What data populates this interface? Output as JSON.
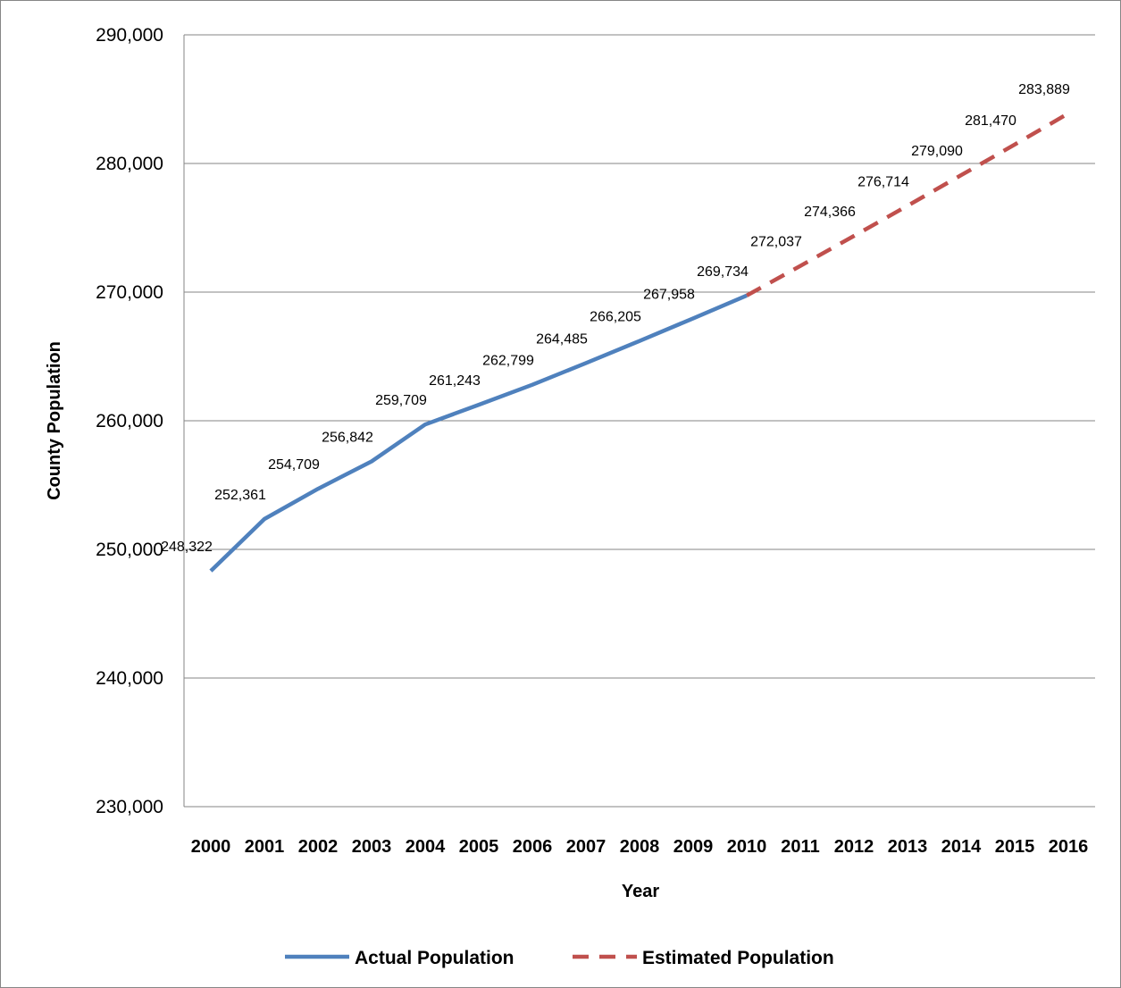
{
  "chart_data": {
    "type": "line",
    "categories": [
      "2000",
      "2001",
      "2002",
      "2003",
      "2004",
      "2005",
      "2006",
      "2007",
      "2008",
      "2009",
      "2010",
      "2011",
      "2012",
      "2013",
      "2014",
      "2015",
      "2016"
    ],
    "xlabel": "Year",
    "ylabel": "County Population",
    "ylim": [
      230000,
      290000
    ],
    "yticks": [
      230000,
      240000,
      250000,
      260000,
      270000,
      280000,
      290000
    ],
    "ytick_labels": [
      "230,000",
      "240,000",
      "250,000",
      "260,000",
      "270,000",
      "280,000",
      "290,000"
    ],
    "grid": true,
    "legend_position": "bottom",
    "series": [
      {
        "name": "Actual Population",
        "color": "#4F81BD",
        "style": "solid",
        "x": [
          "2000",
          "2001",
          "2002",
          "2003",
          "2004",
          "2005",
          "2006",
          "2007",
          "2008",
          "2009",
          "2010"
        ],
        "values": [
          248322,
          252361,
          254709,
          256842,
          259709,
          261243,
          262799,
          264485,
          266205,
          267958,
          269734
        ],
        "labels": [
          "248,322",
          "252,361",
          "254,709",
          "256,842",
          "259,709",
          "261,243",
          "262,799",
          "264,485",
          "266,205",
          "267,958",
          "269,734"
        ]
      },
      {
        "name": "Estimated Population",
        "color": "#C0504D",
        "style": "dashed",
        "x": [
          "2010",
          "2011",
          "2012",
          "2013",
          "2014",
          "2015",
          "2016"
        ],
        "values": [
          269734,
          272037,
          274366,
          276714,
          279090,
          281470,
          283889
        ],
        "labels": [
          "",
          "272,037",
          "274,366",
          "276,714",
          "279,090",
          "281,470",
          "283,889"
        ]
      }
    ]
  }
}
